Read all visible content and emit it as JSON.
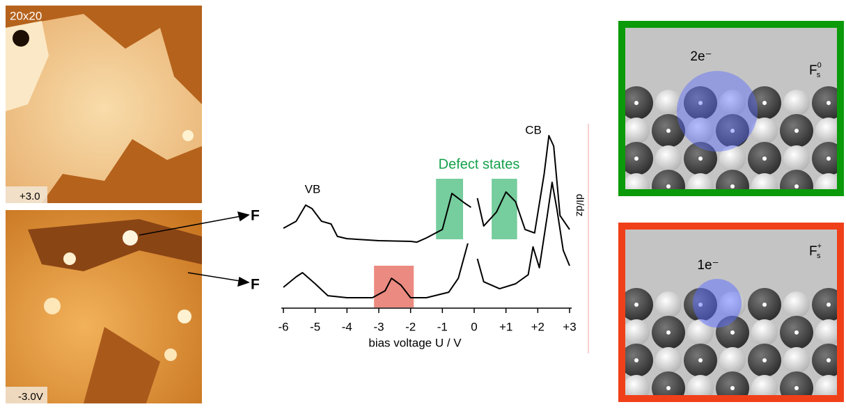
{
  "images": [
    {
      "scale": "20x20",
      "bias": "+3.0"
    },
    {
      "bias": "-3.0V"
    }
  ],
  "chart_data": {
    "type": "line",
    "xlabel": "bias voltage U / V",
    "ylabel": "dI/dz",
    "xlim": [
      -6,
      3
    ],
    "xticks": [
      -6,
      -5,
      -4,
      -3,
      -2,
      -1,
      0,
      {
        "value": 1,
        "label": "+1"
      },
      {
        "value": 2,
        "label": "+2"
      },
      {
        "value": 3,
        "label": "+3"
      }
    ],
    "ylim": [
      0,
      10
    ],
    "annotations": {
      "cb": "CB",
      "vb": "VB",
      "defect": "Defect states"
    },
    "defect_bands": [
      [
        -1.2,
        -0.35
      ],
      [
        0.55,
        1.35
      ]
    ],
    "defect_color": "#5ec48c",
    "charged_band": [
      -3.15,
      -1.9
    ],
    "charged_color": "#e8766a",
    "series": [
      {
        "name": "F",
        "color": "#000000",
        "x": [
          -6.0,
          -5.6,
          -5.3,
          -5.1,
          -4.8,
          -4.5,
          -4.3,
          -4.0,
          -3.0,
          -2.0,
          -1.8,
          -1.5,
          -1.0,
          -0.7,
          -0.3,
          -0.1,
          0.0,
          0.1,
          0.3,
          0.7,
          1.0,
          1.3,
          1.6,
          1.9,
          2.2,
          2.35,
          2.5,
          2.7,
          3.0
        ],
        "values": [
          4.37,
          4.75,
          5.63,
          5.44,
          4.75,
          4.6,
          3.92,
          3.8,
          3.69,
          3.65,
          3.61,
          3.84,
          4.3,
          6.27,
          5.74,
          5.51,
          null,
          6.01,
          4.49,
          5.25,
          6.35,
          5.82,
          4.3,
          4.11,
          7.34,
          9.43,
          8.86,
          5.06,
          4.3
        ]
      },
      {
        "name": "F",
        "color": "#000000",
        "x": [
          -6.0,
          -5.6,
          -5.4,
          -5.0,
          -4.6,
          -4.0,
          -3.2,
          -2.8,
          -2.6,
          -2.3,
          -2.0,
          -1.5,
          -0.8,
          -0.5,
          -0.2,
          0.0,
          0.1,
          0.3,
          0.8,
          1.3,
          1.7,
          1.85,
          2.05,
          2.3,
          2.45,
          2.6,
          2.8,
          3.0
        ],
        "values": [
          1.14,
          1.71,
          1.94,
          1.33,
          0.68,
          0.57,
          0.57,
          0.95,
          1.63,
          1.25,
          0.57,
          0.57,
          0.87,
          1.63,
          3.54,
          null,
          2.7,
          1.44,
          1.06,
          1.33,
          1.83,
          3.35,
          2.21,
          5.06,
          6.88,
          5.44,
          3.16,
          2.32
        ]
      }
    ]
  },
  "models": [
    {
      "charge": "2e⁻",
      "symbol": "F",
      "sub": "s",
      "sup": "0",
      "frame": "#0a9a0a"
    },
    {
      "charge": "1e⁻",
      "symbol": "F",
      "sub": "s",
      "sup": "+",
      "frame": "#f0401a"
    }
  ]
}
